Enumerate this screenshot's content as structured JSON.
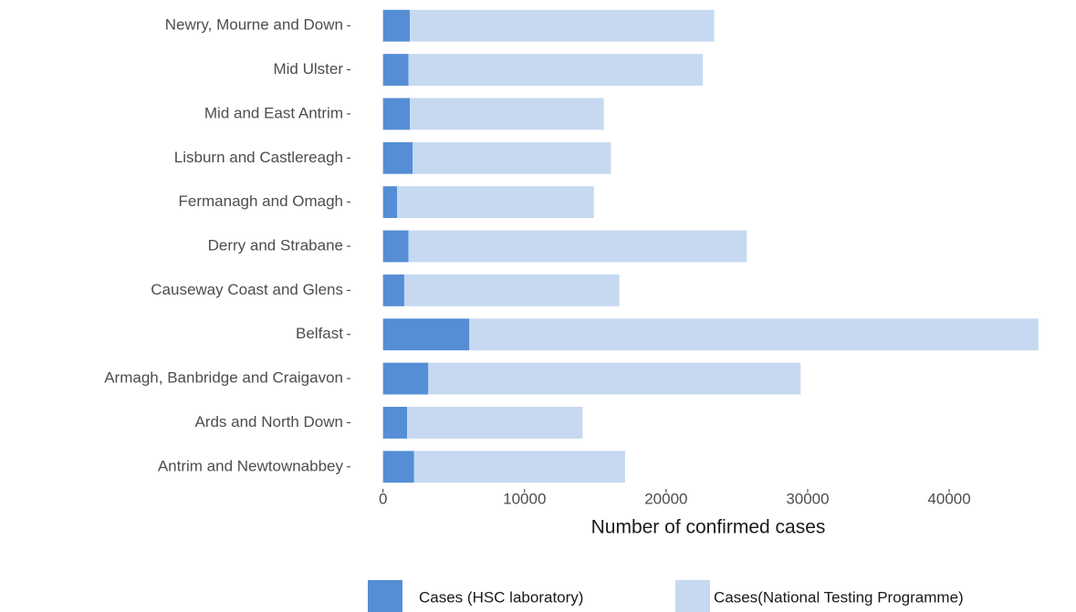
{
  "chart_data": {
    "type": "stacked-barh",
    "x_label": "Number of confirmed cases",
    "categories": [
      "Newry, Mourne and Down",
      "Mid Ulster",
      "Mid and East Antrim",
      "Lisburn and Castlereagh",
      "Fermanagh and Omagh",
      "Derry and Strabane",
      "Causeway Coast and Glens",
      "Belfast",
      "Armagh, Banbridge and Craigavon",
      "Ards and North Down",
      "Antrim and Newtownabbey"
    ],
    "series": [
      {
        "name": "Cases (HSC laboratory)",
        "color": "#558ed5",
        "values": [
          1900,
          1800,
          1900,
          2100,
          1000,
          1800,
          1500,
          6100,
          3200,
          1700,
          2200
        ]
      },
      {
        "name": "Cases(National Testing Programme)",
        "color": "#c6d9f1",
        "values": [
          21500,
          20800,
          13700,
          14000,
          13900,
          23900,
          15200,
          40200,
          26300,
          12400,
          14900
        ]
      }
    ],
    "xlim": [
      -2300,
      48700
    ],
    "xticks": [
      0,
      10000,
      20000,
      30000,
      40000
    ],
    "legend": "bottom"
  }
}
